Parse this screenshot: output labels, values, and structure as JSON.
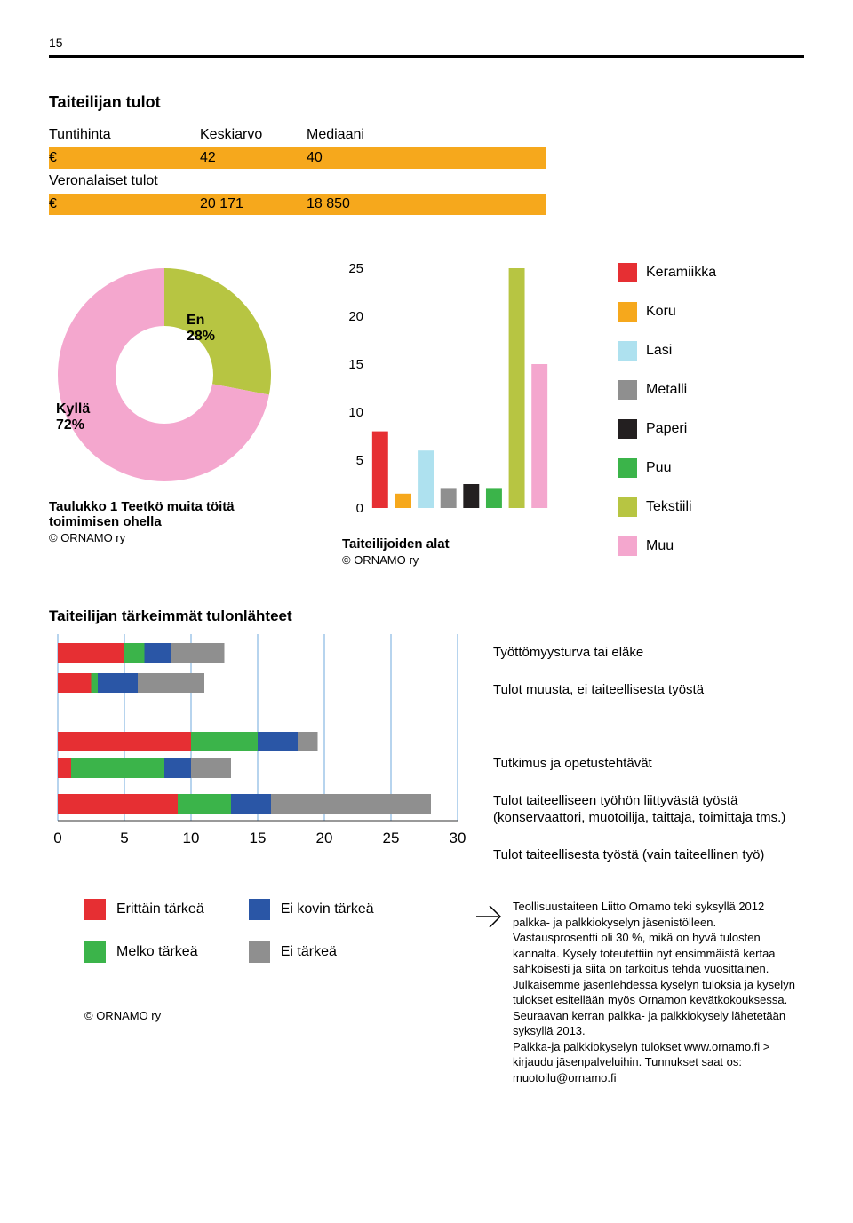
{
  "page_number": "15",
  "title1": "Taiteilijan tulot",
  "table": {
    "col1": "Tuntihinta",
    "col2": "Keskiarvo",
    "col3": "Mediaani",
    "row1_sym": "€",
    "row1_c2": "42",
    "row1_c3": "40",
    "row2_label": "Veronalaiset tulot",
    "row3_sym": "€",
    "row3_c2": "20 171",
    "row3_c3": "18 850",
    "bar_color": "#f6a81c"
  },
  "donut": {
    "kylla_label": "Kyllä",
    "kylla_pct": "72%",
    "en_label": "En",
    "en_pct": "28%",
    "color_kylla": "#f4a7ce",
    "color_en": "#b7c542",
    "caption": "Taulukko 1  Teetkö muita töitä toimimisen ohella",
    "credit": "© ORNAMO ry"
  },
  "bars": {
    "categories": [
      "Keramiikka",
      "Koru",
      "Lasi",
      "Metalli",
      "Paperi",
      "Puu",
      "Tekstiili",
      "Muu"
    ],
    "values": [
      8,
      1.5,
      6,
      2,
      2.5,
      2,
      25,
      15
    ],
    "colors": [
      "#e62f33",
      "#f6a81c",
      "#aee1ef",
      "#8f8f8f",
      "#231f20",
      "#3bb44a",
      "#b7c542",
      "#f4a7ce"
    ],
    "yticks": [
      0,
      5,
      10,
      15,
      20,
      25
    ],
    "caption": "Taiteilijoiden alat",
    "credit": "© ORNAMO ry"
  },
  "legend_materials": {
    "items": [
      {
        "label": "Keramiikka",
        "color": "#e62f33"
      },
      {
        "label": "Koru",
        "color": "#f6a81c"
      },
      {
        "label": "Lasi",
        "color": "#aee1ef"
      },
      {
        "label": "Metalli",
        "color": "#8f8f8f"
      },
      {
        "label": "Paperi",
        "color": "#231f20"
      },
      {
        "label": "Puu",
        "color": "#3bb44a"
      },
      {
        "label": "Tekstiili",
        "color": "#b7c542"
      },
      {
        "label": "Muu",
        "color": "#f4a7ce"
      }
    ]
  },
  "stacked": {
    "title": "Taiteilijan tärkeimmät tulonlähteet",
    "xticks": [
      0,
      5,
      10,
      15,
      20,
      25,
      30
    ],
    "max": 30,
    "colors": {
      "red": "#e62f33",
      "green": "#3bb44a",
      "blue": "#2a56a6",
      "grey": "#8f8f8f"
    },
    "rows": [
      {
        "label": "Työttömyysturva tai eläke",
        "segments": [
          {
            "c": "red",
            "v": 5
          },
          {
            "c": "green",
            "v": 1.5
          },
          {
            "c": "blue",
            "v": 2
          },
          {
            "c": "grey",
            "v": 4
          }
        ]
      },
      {
        "label": "Tulot muusta, ei taiteellisesta työstä",
        "segments": [
          {
            "c": "red",
            "v": 2.5
          },
          {
            "c": "green",
            "v": 0.5
          },
          {
            "c": "blue",
            "v": 3
          },
          {
            "c": "grey",
            "v": 5
          }
        ]
      },
      {
        "label": "Tutkimus ja opetustehtävät",
        "segments": [
          {
            "c": "red",
            "v": 10
          },
          {
            "c": "green",
            "v": 5
          },
          {
            "c": "blue",
            "v": 3
          },
          {
            "c": "grey",
            "v": 1.5
          }
        ]
      },
      {
        "label": "Tulot taiteelliseen työhön liittyvästä työstä (konservaattori, muotoilija, taittaja, toimittaja tms.)",
        "segments": [
          {
            "c": "red",
            "v": 1
          },
          {
            "c": "green",
            "v": 7
          },
          {
            "c": "blue",
            "v": 2
          },
          {
            "c": "grey",
            "v": 3
          }
        ]
      },
      {
        "label": "Tulot taiteellisesta työstä (vain taiteellinen työ)",
        "segments": [
          {
            "c": "red",
            "v": 9
          },
          {
            "c": "green",
            "v": 4
          },
          {
            "c": "blue",
            "v": 3
          },
          {
            "c": "grey",
            "v": 12
          }
        ]
      }
    ]
  },
  "legend2": {
    "items": [
      {
        "label": "Erittäin tärkeä",
        "color": "#e62f33"
      },
      {
        "label": "Melko tärkeä",
        "color": "#3bb44a"
      },
      {
        "label": "Ei kovin tärkeä",
        "color": "#2a56a6"
      },
      {
        "label": "Ei tärkeä",
        "color": "#8f8f8f"
      }
    ],
    "credit": "© ORNAMO ry"
  },
  "info": {
    "text": "Teollisuustaiteen Liitto Ornamo teki syksyllä 2012 palkka- ja palkkiokyselyn jäsenistölleen. Vastausprosentti oli 30 %, mikä on hyvä tulosten kannalta. Kysely toteutettiin nyt ensimmäistä kertaa sähköisesti ja siitä on tarkoitus tehdä vuosittainen. Julkaisemme jäsenlehdessä kyselyn tuloksia ja kyselyn tulokset esitellään myös Ornamon kevätkokouksessa. Seuraavan kerran palkka- ja palkkiokysely lähetetään syksyllä 2013.",
    "text2": "Palkka-ja palkkiokyselyn tulokset www.ornamo.fi > kirjaudu jäsenpalveluihin. Tunnukset saat os: muotoilu@ornamo.fi"
  }
}
